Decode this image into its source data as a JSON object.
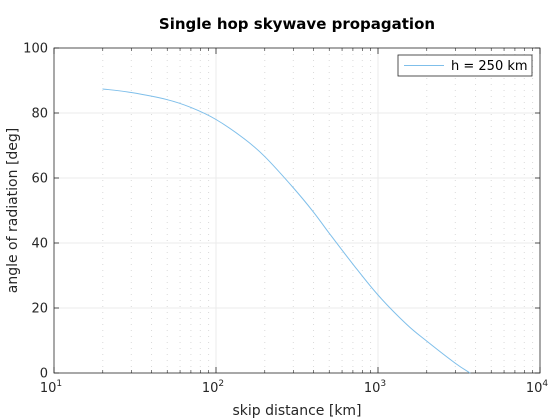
{
  "chart_data": {
    "type": "line",
    "title": "Single hop skywave propagation",
    "xlabel": "skip distance [km]",
    "ylabel": "angle of radiation [deg]",
    "xscale": "log",
    "xlim": [
      10,
      10000
    ],
    "ylim": [
      0,
      100
    ],
    "grid": true,
    "legend_position": "top-right",
    "x_ticks": [
      {
        "base": "10",
        "exp": "1"
      },
      {
        "base": "10",
        "exp": "2"
      },
      {
        "base": "10",
        "exp": "3"
      },
      {
        "base": "10",
        "exp": "4"
      }
    ],
    "y_ticks": [
      "0",
      "20",
      "40",
      "60",
      "80",
      "100"
    ],
    "series": [
      {
        "name": "h = 250 km",
        "color": "#7fbfea",
        "x": [
          20,
          30,
          50,
          70,
          100,
          150,
          200,
          300,
          400,
          500,
          700,
          1000,
          1500,
          2000,
          3000,
          3700
        ],
        "y": [
          87.4,
          86.3,
          84.1,
          81.7,
          78.0,
          72.0,
          66.6,
          57.0,
          49.5,
          43.0,
          33.5,
          24.0,
          15.0,
          9.8,
          3.0,
          0
        ]
      }
    ]
  }
}
